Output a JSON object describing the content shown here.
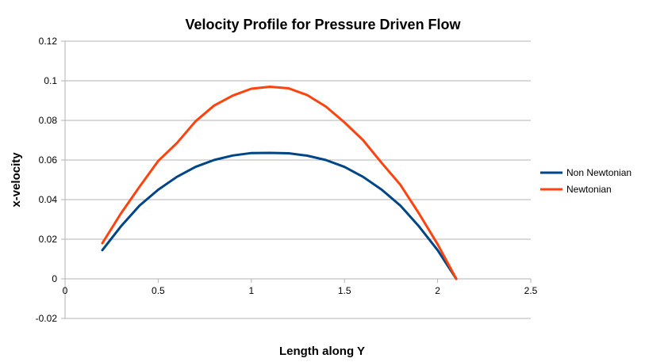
{
  "chart_data": {
    "type": "line",
    "title": "Velocity Profile for Pressure Driven Flow",
    "xlabel": "Length along Y",
    "ylabel": "x-velocity",
    "xlim": [
      0,
      2.5
    ],
    "ylim": [
      -0.02,
      0.12
    ],
    "x_ticks": [
      "0",
      "0.5",
      "1",
      "1.5",
      "2",
      "2.5"
    ],
    "y_ticks": [
      "-0.02",
      "0",
      "0.02",
      "0.04",
      "0.06",
      "0.08",
      "0.1",
      "0.12"
    ],
    "grid": "horizontal",
    "legend_position": "right",
    "series": [
      {
        "name": "Non Newtonian",
        "color": "#004586",
        "x": [
          0.2,
          0.3,
          0.4,
          0.5,
          0.6,
          0.7,
          0.8,
          0.9,
          1.0,
          1.1,
          1.2,
          1.3,
          1.4,
          1.5,
          1.6,
          1.7,
          1.8,
          1.9,
          2.0,
          2.1
        ],
        "y": [
          0.0145,
          0.0265,
          0.037,
          0.045,
          0.0515,
          0.0565,
          0.06,
          0.0623,
          0.0635,
          0.0636,
          0.0634,
          0.0622,
          0.06,
          0.0565,
          0.0515,
          0.045,
          0.037,
          0.0265,
          0.0145,
          0.0
        ]
      },
      {
        "name": "Newtonian",
        "color": "#ff420e",
        "x": [
          0.2,
          0.3,
          0.4,
          0.5,
          0.6,
          0.7,
          0.8,
          0.9,
          1.0,
          1.1,
          1.2,
          1.3,
          1.4,
          1.5,
          1.6,
          1.7,
          1.8,
          1.9,
          2.0,
          2.1
        ],
        "y": [
          0.018,
          0.033,
          0.0465,
          0.0595,
          0.0685,
          0.0795,
          0.0875,
          0.0925,
          0.096,
          0.097,
          0.0962,
          0.0928,
          0.087,
          0.079,
          0.07,
          0.0585,
          0.0475,
          0.033,
          0.0175,
          0.0
        ]
      }
    ]
  }
}
